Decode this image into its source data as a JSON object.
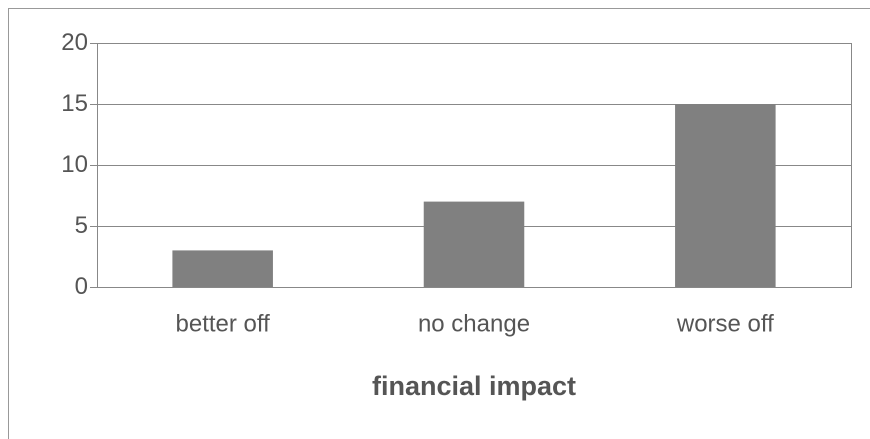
{
  "chart_data": {
    "type": "bar",
    "x_label": "financial impact",
    "categories": [
      "better off",
      "no change",
      "worse off"
    ],
    "values": [
      3,
      7,
      15
    ],
    "color": "#808080",
    "ylim": [
      0,
      20
    ],
    "yticks": [
      0,
      5,
      10,
      15,
      20
    ],
    "grid": true
  }
}
